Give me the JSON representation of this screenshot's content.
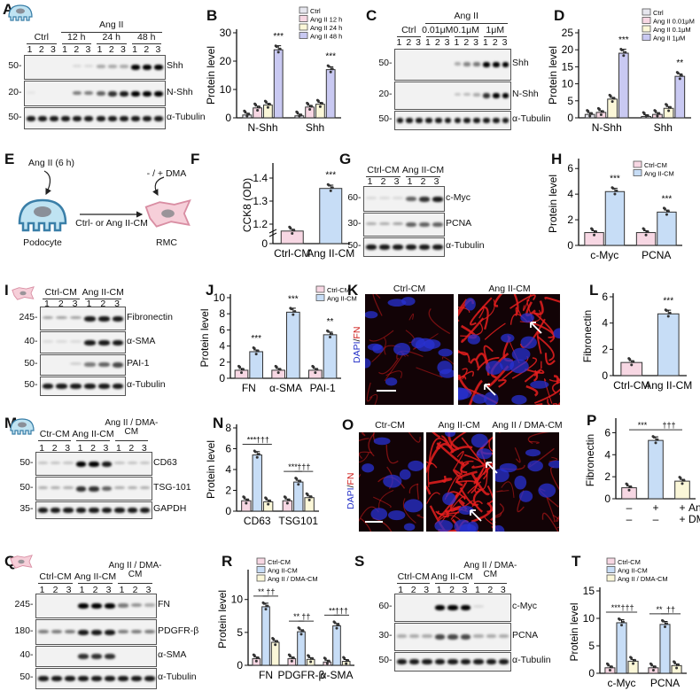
{
  "letters": {
    "A": "A",
    "B": "B",
    "C": "C",
    "D": "D",
    "E": "E",
    "F": "F",
    "G": "G",
    "H": "H",
    "I": "I",
    "J": "J",
    "K": "K",
    "L": "L",
    "M": "M",
    "N": "N",
    "O": "O",
    "P": "P",
    "Q": "Q",
    "R": "R",
    "S": "S",
    "T": "T"
  },
  "colors": {
    "ctrl": "#e6e6ee",
    "pink": "#f7d7e3",
    "yellow": "#fbf7d8",
    "purple": "#c9c9f2",
    "blue": "#c7ddf6",
    "fn_red": "#e0201e",
    "dapi_blue": "#2430c8"
  },
  "blots": {
    "A": {
      "super": "Ang II",
      "groups": [
        "Ctrl",
        "12 h",
        "24 h",
        "48 h"
      ],
      "lanes": [
        "1",
        "2",
        "3"
      ],
      "rows": [
        {
          "marker": "50",
          "label": "Shh"
        },
        {
          "marker": "20",
          "label": "N-Shh"
        },
        {
          "marker": "50",
          "label": "α-Tubulin"
        }
      ],
      "cell_icon": "podocyte-icon"
    },
    "C": {
      "super": "Ang II",
      "groups": [
        "Ctrl",
        "0.01μM",
        "0.1μM",
        "1μM"
      ],
      "lanes": [
        "1",
        "2",
        "3"
      ],
      "rows": [
        {
          "marker": "50",
          "label": "Shh"
        },
        {
          "marker": "20",
          "label": "N-Shh"
        },
        {
          "marker": "50",
          "label": "α-Tubulin"
        }
      ]
    },
    "G": {
      "groups": [
        "Ctrl-CM",
        "Ang II-CM"
      ],
      "lanes": [
        "1",
        "2",
        "3"
      ],
      "rows": [
        {
          "marker": "60",
          "label": "c-Myc"
        },
        {
          "marker": "30",
          "label": "PCNA"
        },
        {
          "marker": "50",
          "label": "α-Tubulin"
        }
      ]
    },
    "I": {
      "groups": [
        "Ctrl-CM",
        "Ang II-CM"
      ],
      "lanes": [
        "1",
        "2",
        "3"
      ],
      "rows": [
        {
          "marker": "245",
          "label": "Fibronectin"
        },
        {
          "marker": "40",
          "label": "α-SMA"
        },
        {
          "marker": "50",
          "label": "PAI-1"
        },
        {
          "marker": "50",
          "label": "α-Tubulin"
        }
      ],
      "cell_icon": "rmc-icon"
    },
    "M": {
      "groups": [
        "Ctr-CM",
        "Ang II-CM",
        "Ang II / DMA-CM"
      ],
      "lanes": [
        "1",
        "2",
        "3"
      ],
      "rows": [
        {
          "marker": "50",
          "label": "CD63"
        },
        {
          "marker": "50",
          "label": "TSG-101"
        },
        {
          "marker": "35",
          "label": "GAPDH"
        }
      ],
      "cell_icon": "podocyte-icon"
    },
    "Q": {
      "groups": [
        "Ctrl-CM",
        "Ang II-CM",
        "Ang II / DMA-CM"
      ],
      "lanes": [
        "1",
        "2",
        "3"
      ],
      "rows": [
        {
          "marker": "245",
          "label": "FN"
        },
        {
          "marker": "180",
          "label": "PDGFR-β"
        },
        {
          "marker": "40",
          "label": "α-SMA"
        },
        {
          "marker": "50",
          "label": "α-Tubulin"
        }
      ],
      "cell_icon": "rmc-icon"
    },
    "S": {
      "groups": [
        "Ctrl-CM",
        "Ang II-CM",
        "Ang II / DMA-CM"
      ],
      "lanes": [
        "1",
        "2",
        "3"
      ],
      "rows": [
        {
          "marker": "60",
          "label": "c-Myc"
        },
        {
          "marker": "30",
          "label": "PCNA"
        },
        {
          "marker": "50",
          "label": "α-Tubulin"
        }
      ]
    }
  },
  "diagram_E": {
    "stimulus": "Ang II (6 h)",
    "source_cell": "Podocyte",
    "transfer": "Ctrl- or Ang II-CM",
    "treatment": "- / + DMA",
    "target_cell": "RMC"
  },
  "images": {
    "K": {
      "stain_label_dapi": "DAPI",
      "stain_label_sep": "/",
      "stain_label_fn": "FN",
      "panels": [
        "Ctrl-CM",
        "Ang II-CM"
      ]
    },
    "O": {
      "stain_label_dapi": "DAPI",
      "stain_label_sep": "/",
      "stain_label_fn": "FN",
      "panels": [
        "Ctr-CM",
        "Ang II-CM",
        "Ang II / DMA-CM"
      ]
    }
  },
  "chart_data": [
    {
      "id": "B",
      "type": "bar",
      "ylabel": "Protein level",
      "ylim": [
        0,
        30
      ],
      "yticks": [
        0,
        10,
        20,
        30
      ],
      "categories": [
        "N-Shh",
        "Shh"
      ],
      "legend": "top-right",
      "series": [
        {
          "name": "Ctrl",
          "color": "#e6e6ee",
          "values": [
            1.0,
            0.7
          ]
        },
        {
          "name": "Ang II 12 h",
          "color": "#f7d7e3",
          "values": [
            3.5,
            3.8
          ]
        },
        {
          "name": "Ang II 24 h",
          "color": "#fbf7d8",
          "values": [
            4.5,
            4.8
          ]
        },
        {
          "name": "Ang II 48 h",
          "color": "#c9c9f2",
          "values": [
            24,
            17
          ]
        }
      ],
      "sig": [
        {
          "series": 3,
          "category": 0,
          "label": "***"
        },
        {
          "series": 3,
          "category": 1,
          "label": "***"
        }
      ]
    },
    {
      "id": "D",
      "type": "bar",
      "ylabel": "Protein level",
      "ylim": [
        0,
        25
      ],
      "yticks": [
        0,
        5,
        10,
        15,
        20,
        25
      ],
      "categories": [
        "N-Shh",
        "Shh"
      ],
      "legend": "top-right",
      "series": [
        {
          "name": "Ctrl",
          "color": "#e6e6ee",
          "values": [
            1.0,
            0.4
          ]
        },
        {
          "name": "Ang II 0.01μM",
          "color": "#f7d7e3",
          "values": [
            1.6,
            1.0
          ]
        },
        {
          "name": "Ang II 0.1μM",
          "color": "#fbf7d8",
          "values": [
            5.5,
            2.8
          ]
        },
        {
          "name": "Ang II 1μM",
          "color": "#c9c9f2",
          "values": [
            19,
            12.2
          ]
        }
      ],
      "sig": [
        {
          "series": 3,
          "category": 0,
          "label": "***"
        },
        {
          "series": 3,
          "category": 1,
          "label": "**"
        }
      ]
    },
    {
      "id": "F",
      "type": "bar",
      "ylabel": "CCK8 (OD)",
      "ylim": [
        1.15,
        1.45
      ],
      "axis_break": true,
      "yticks": [
        0,
        1.2,
        1.3,
        1.4
      ],
      "categories": [
        "Ctrl-CM",
        "Ang II-CM"
      ],
      "series": [
        {
          "values": [
            1.17,
            1.355
          ],
          "colors": [
            "#f7d7e3",
            "#c7ddf6"
          ]
        }
      ],
      "sig": [
        {
          "series": 0,
          "category": 1,
          "label": "***"
        }
      ]
    },
    {
      "id": "H",
      "type": "bar",
      "ylabel": "Protein level",
      "ylim": [
        0,
        6.5
      ],
      "yticks": [
        0,
        2,
        4,
        6
      ],
      "categories": [
        "c-Myc",
        "PCNA"
      ],
      "legend": "top-right",
      "series": [
        {
          "name": "Ctrl-CM",
          "color": "#f7d7e3",
          "values": [
            1.0,
            1.0
          ]
        },
        {
          "name": "Ang II-CM",
          "color": "#c7ddf6",
          "values": [
            4.2,
            2.6
          ]
        }
      ],
      "sig": [
        {
          "series": 1,
          "category": 0,
          "label": "***"
        },
        {
          "series": 1,
          "category": 1,
          "label": "***"
        }
      ]
    },
    {
      "id": "J",
      "type": "bar",
      "ylabel": "Protein level",
      "ylim": [
        0,
        10
      ],
      "yticks": [
        0,
        2,
        4,
        6,
        8,
        10
      ],
      "categories": [
        "FN",
        "α-SMA",
        "PAI-1"
      ],
      "legend": "top-right",
      "series": [
        {
          "name": "Ctrl-CM",
          "color": "#f7d7e3",
          "values": [
            1.0,
            1.0,
            1.0
          ]
        },
        {
          "name": "Ang II-CM",
          "color": "#c7ddf6",
          "values": [
            3.3,
            8.2,
            5.4
          ]
        }
      ],
      "sig": [
        {
          "series": 1,
          "category": 0,
          "label": "***"
        },
        {
          "series": 1,
          "category": 1,
          "label": "***"
        },
        {
          "series": 1,
          "category": 2,
          "label": "**"
        }
      ]
    },
    {
      "id": "L",
      "type": "bar",
      "ylabel": "Fibronectin",
      "ylim": [
        0,
        6
      ],
      "yticks": [
        0,
        2,
        4,
        6
      ],
      "categories": [
        "Ctrl-CM",
        "Ang II-CM"
      ],
      "series": [
        {
          "values": [
            1.0,
            4.7
          ],
          "colors": [
            "#f7d7e3",
            "#c7ddf6"
          ]
        }
      ],
      "sig": [
        {
          "series": 0,
          "category": 1,
          "label": "***"
        }
      ]
    },
    {
      "id": "N",
      "type": "bar",
      "ylabel": "Protein level",
      "ylim": [
        0,
        8
      ],
      "yticks": [
        0,
        2,
        4,
        6,
        8
      ],
      "categories": [
        "CD63",
        "TSG101"
      ],
      "series": [
        {
          "color": "#f7d7e3",
          "values": [
            1.0,
            1.0
          ]
        },
        {
          "color": "#c7ddf6",
          "values": [
            5.4,
            2.8
          ]
        },
        {
          "color": "#fbf7d8",
          "values": [
            0.9,
            1.3
          ]
        }
      ],
      "brackets": [
        {
          "category": 0,
          "from": 0,
          "to": 1,
          "label": "***"
        },
        {
          "category": 0,
          "from": 1,
          "to": 2,
          "label": "†††"
        },
        {
          "category": 1,
          "from": 0,
          "to": 1,
          "label": "***"
        },
        {
          "category": 1,
          "from": 1,
          "to": 2,
          "label": "†††"
        }
      ]
    },
    {
      "id": "P",
      "type": "bar",
      "ylabel": "Fibronectin",
      "ylim": [
        0,
        7
      ],
      "yticks": [
        0,
        2,
        4,
        6
      ],
      "categories": [
        "1",
        "2",
        "3"
      ],
      "series": [
        {
          "values": [
            1.0,
            5.3,
            1.6
          ],
          "colors": [
            "#f7d7e3",
            "#c7ddf6",
            "#fbf7d8"
          ]
        }
      ],
      "condition_rows": [
        {
          "label": "Ang II",
          "marks": [
            "–",
            "+",
            "+"
          ]
        },
        {
          "label": "DMA",
          "marks": [
            "–",
            "–",
            "+"
          ]
        }
      ],
      "brackets": [
        {
          "from_cat": 0,
          "to_cat": 1,
          "label": "***"
        },
        {
          "from_cat": 1,
          "to_cat": 2,
          "label": "†††"
        }
      ]
    },
    {
      "id": "R",
      "type": "bar",
      "ylabel": "Protein level",
      "ylim": [
        0,
        14
      ],
      "yticks": [
        0,
        5,
        10
      ],
      "categories": [
        "FN",
        "PDGFR-β",
        "α-SMA"
      ],
      "legend": "top-left",
      "series": [
        {
          "name": "Ctrl-CM",
          "color": "#f7d7e3",
          "values": [
            1.0,
            1.0,
            0.5
          ]
        },
        {
          "name": "Ang II-CM",
          "color": "#c7ddf6",
          "values": [
            8.9,
            5.1,
            6.0
          ]
        },
        {
          "name": "Ang II / DMA-CM",
          "color": "#fbf7d8",
          "values": [
            3.5,
            0.9,
            0.6
          ]
        }
      ],
      "brackets": [
        {
          "category": 0,
          "from": 0,
          "to": 1,
          "label": "**"
        },
        {
          "category": 0,
          "from": 1,
          "to": 2,
          "label": "††"
        },
        {
          "category": 1,
          "from": 0,
          "to": 1,
          "label": "**"
        },
        {
          "category": 1,
          "from": 1,
          "to": 2,
          "label": "††"
        },
        {
          "category": 2,
          "from": 0,
          "to": 1,
          "label": "**"
        },
        {
          "category": 2,
          "from": 1,
          "to": 2,
          "label": "†††"
        }
      ]
    },
    {
      "id": "T",
      "type": "bar",
      "ylabel": "Protein level",
      "ylim": [
        0,
        15
      ],
      "yticks": [
        0,
        5,
        10,
        15
      ],
      "categories": [
        "c-Myc",
        "PCNA"
      ],
      "legend": "top-left",
      "series": [
        {
          "name": "Ctrl-CM",
          "color": "#f7d7e3",
          "values": [
            1.0,
            1.0
          ]
        },
        {
          "name": "Ang II-CM",
          "color": "#c7ddf6",
          "values": [
            9.2,
            8.9
          ]
        },
        {
          "name": "Ang II / DMA-CM",
          "color": "#fbf7d8",
          "values": [
            2.2,
            1.4
          ]
        }
      ],
      "brackets": [
        {
          "category": 0,
          "from": 0,
          "to": 1,
          "label": "***"
        },
        {
          "category": 0,
          "from": 1,
          "to": 2,
          "label": "†††"
        },
        {
          "category": 1,
          "from": 0,
          "to": 1,
          "label": "**"
        },
        {
          "category": 1,
          "from": 1,
          "to": 2,
          "label": "††"
        }
      ]
    }
  ]
}
